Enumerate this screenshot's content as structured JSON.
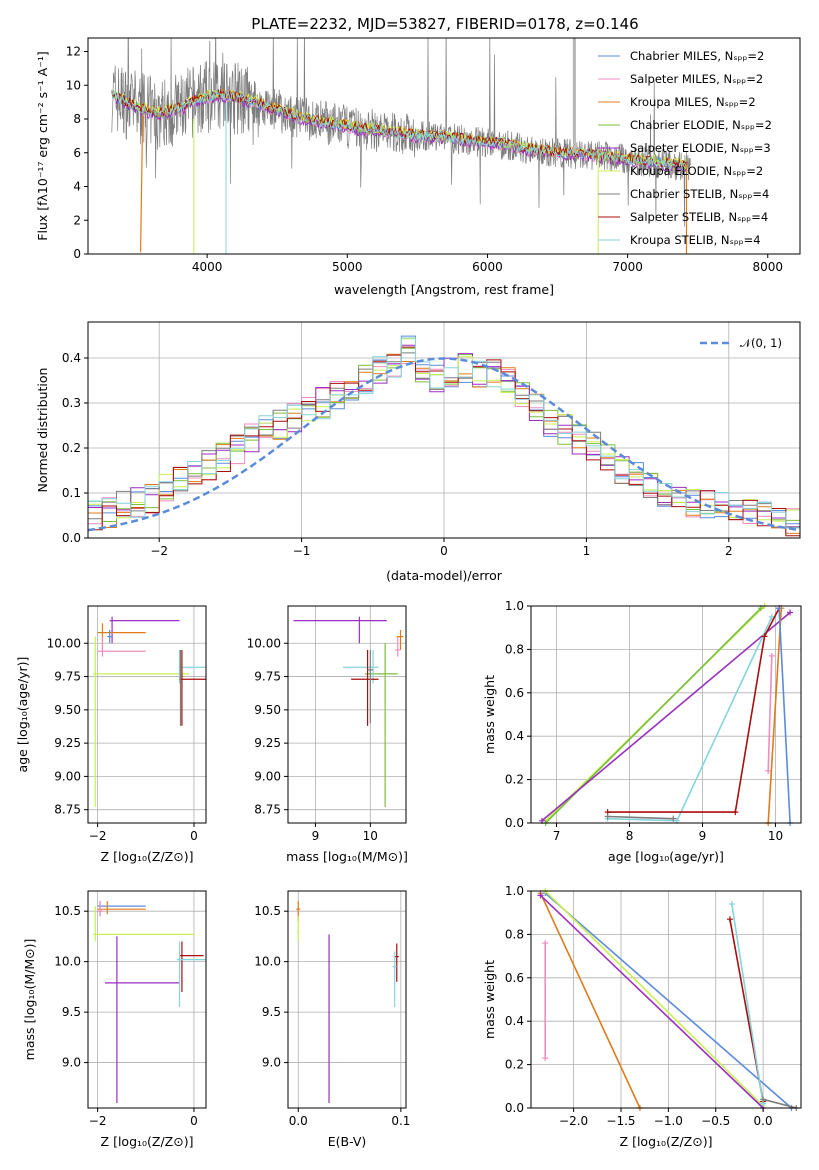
{
  "colors": {
    "chabrier_miles": "#5b8bd9",
    "salpeter_miles": "#f08cbf",
    "kroupa_miles": "#e07b1a",
    "chabrier_elodie": "#7cbf3b",
    "salpeter_elodie": "#9b2fc0",
    "kroupa_elodie": "#c8ef54",
    "chabrier_stelib": "#7d7d7d",
    "salpeter_stelib": "#a80f0f",
    "kroupa_stelib": "#86d4dc",
    "normal_curve": "#5b8bd9"
  },
  "chart_data": [
    {
      "id": "spectrum",
      "type": "line",
      "title": "PLATE=2232, MJD=53827, FIBERID=0178, z=0.146",
      "xlabel": "wavelength [Angstrom, rest frame]",
      "ylabel": "Flux [fλ10⁻¹⁷ erg cm⁻² s⁻¹ A⁻¹]",
      "xlim": [
        3150,
        8230
      ],
      "ylim": [
        0,
        12.8
      ],
      "xticks": [
        "4000",
        "5000",
        "6000",
        "7000",
        "8000"
      ],
      "yticks": [
        "0",
        "2",
        "4",
        "6",
        "8",
        "10",
        "12"
      ],
      "legend_position": "top-right",
      "legend": [
        "Chabrier MILES, Nₛₚₚ=2",
        "Salpeter MILES, Nₛₚₚ=2",
        "Kroupa MILES, Nₛₚₚ=2",
        "Chabrier ELODIE, Nₛₚₚ=2",
        "Salpeter ELODIE, Nₛₚₚ=3",
        "Kroupa ELODIE, Nₛₚₚ=2",
        "Chabrier STELIB, Nₛₚₚ=4",
        "Salpeter STELIB, Nₛₚₚ=4",
        "Kroupa STELIB, Nₛₚₚ=4"
      ],
      "continuum": {
        "x": [
          3320,
          3420,
          3520,
          3650,
          3800,
          3950,
          4100,
          4300,
          4500,
          4700,
          4900,
          5100,
          5300,
          5500,
          5700,
          5900,
          6100,
          6300,
          6500,
          6700,
          6900,
          7100,
          7300,
          7450
        ],
        "y": [
          9.4,
          9.0,
          8.6,
          8.3,
          8.6,
          9.2,
          9.4,
          9.1,
          8.5,
          8.0,
          7.7,
          7.4,
          7.2,
          7.0,
          6.9,
          6.7,
          6.5,
          6.2,
          6.0,
          5.9,
          5.7,
          5.5,
          5.3,
          5.2
        ]
      }
    },
    {
      "id": "residuals",
      "type": "line",
      "xlabel": "(data-model)/error",
      "ylabel": "Normed distribution",
      "xlim": [
        -2.5,
        2.5
      ],
      "ylim": [
        0,
        0.48
      ],
      "xticks": [
        "−2",
        "−1",
        "0",
        "1",
        "2"
      ],
      "yticks": [
        "0.0",
        "0.1",
        "0.2",
        "0.3",
        "0.4"
      ],
      "legend_position": "top-right",
      "legend": [
        "𝒩(0, 1)"
      ],
      "histogram_bins": [
        -2.5,
        -2.4,
        -2.3,
        -2.2,
        -2.1,
        -2.0,
        -1.9,
        -1.8,
        -1.7,
        -1.6,
        -1.5,
        -1.4,
        -1.3,
        -1.2,
        -1.1,
        -1.0,
        -0.9,
        -0.8,
        -0.7,
        -0.6,
        -0.5,
        -0.4,
        -0.3,
        -0.2,
        -0.1,
        0.0,
        0.1,
        0.2,
        0.3,
        0.4,
        0.5,
        0.6,
        0.7,
        0.8,
        0.9,
        1.0,
        1.1,
        1.2,
        1.3,
        1.4,
        1.5,
        1.6,
        1.7,
        1.8,
        1.9,
        2.0,
        2.1,
        2.2,
        2.3,
        2.4,
        2.5
      ],
      "histogram_heights": [
        0.05,
        0.055,
        0.07,
        0.08,
        0.09,
        0.11,
        0.125,
        0.14,
        0.16,
        0.18,
        0.2,
        0.22,
        0.24,
        0.25,
        0.27,
        0.29,
        0.3,
        0.32,
        0.33,
        0.35,
        0.37,
        0.39,
        0.42,
        0.38,
        0.36,
        0.37,
        0.38,
        0.36,
        0.37,
        0.35,
        0.32,
        0.29,
        0.26,
        0.24,
        0.22,
        0.2,
        0.18,
        0.15,
        0.14,
        0.12,
        0.1,
        0.09,
        0.08,
        0.075,
        0.07,
        0.06,
        0.055,
        0.05,
        0.04,
        0.035
      ]
    },
    {
      "id": "age-vs-metallicity",
      "type": "scatter",
      "xlabel": "Z [log₁₀(Z/Z⊙)]",
      "ylabel": "age  [log₁₀(age/yr)]",
      "xlim": [
        -2.2,
        0.25
      ],
      "ylim": [
        8.65,
        10.28
      ],
      "xticks": [
        "−2",
        "0"
      ],
      "yticks": [
        "8.75",
        "9.00",
        "9.25",
        "9.50",
        "9.75",
        "10.00"
      ]
    },
    {
      "id": "age-vs-mass",
      "type": "scatter",
      "xlabel": "mass [log₁₀(M/M⊙)]",
      "ylim": [
        8.65,
        10.28
      ],
      "xlim": [
        8.5,
        10.65
      ],
      "xticks": [
        "9",
        "10"
      ],
      "yticks": [
        "8.75",
        "9.00",
        "9.25",
        "9.50",
        "9.75",
        "10.00"
      ]
    },
    {
      "id": "weight-vs-age",
      "type": "line",
      "xlabel": "age  [log₁₀(age/yr)]",
      "ylabel": "mass weight",
      "xlim": [
        6.65,
        10.35
      ],
      "ylim": [
        0,
        1.0
      ],
      "xticks": [
        "7",
        "8",
        "9",
        "10"
      ],
      "yticks": [
        "0.0",
        "0.2",
        "0.4",
        "0.6",
        "0.8",
        "1.0"
      ]
    },
    {
      "id": "mass-vs-metallicity",
      "type": "scatter",
      "xlabel": "Z [log₁₀(Z/Z⊙)]",
      "ylabel": "mass [log₁₀(M/M⊙)]",
      "xlim": [
        -2.2,
        0.25
      ],
      "ylim": [
        8.55,
        10.7
      ],
      "xticks": [
        "−2",
        "0"
      ],
      "yticks": [
        "9.0",
        "9.5",
        "10.0",
        "10.5"
      ]
    },
    {
      "id": "mass-vs-extinction",
      "type": "scatter",
      "xlabel": "E(B-V)",
      "xlim": [
        -0.01,
        0.105
      ],
      "ylim": [
        8.55,
        10.7
      ],
      "xticks": [
        "0.0",
        "0.1"
      ],
      "yticks": [
        "9.0",
        "9.5",
        "10.0",
        "10.5"
      ]
    },
    {
      "id": "weight-vs-metallicity",
      "type": "line",
      "xlabel": "Z [log₁₀(Z/Z⊙)]",
      "ylabel": "mass weight",
      "xlim": [
        -2.45,
        0.4
      ],
      "ylim": [
        0,
        1.0
      ],
      "xticks": [
        "−2.0",
        "−1.5",
        "−1.0",
        "−0.5",
        "0.0"
      ],
      "yticks": [
        "0.0",
        "0.2",
        "0.4",
        "0.6",
        "0.8",
        "1.0"
      ]
    }
  ]
}
